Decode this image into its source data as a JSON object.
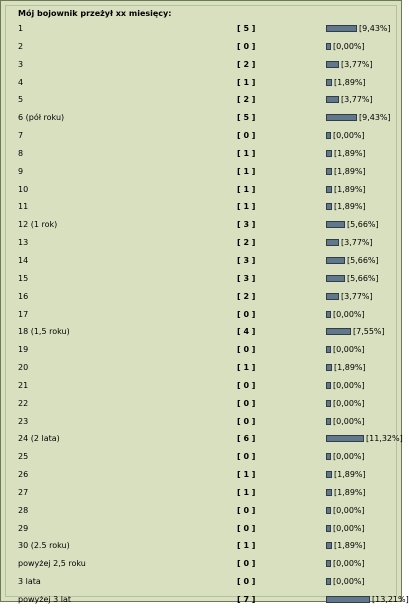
{
  "poll": {
    "title": "Mój bojownik przeżył xx miesięcy:",
    "bar_color": "#61788a",
    "rows": [
      {
        "label": "1",
        "count": "[ 5 ]",
        "percent": "[9,43%]",
        "value": 9.43
      },
      {
        "label": "2",
        "count": "[ 0 ]",
        "percent": "[0,00%]",
        "value": 0
      },
      {
        "label": "3",
        "count": "[ 2 ]",
        "percent": "[3,77%]",
        "value": 3.77
      },
      {
        "label": "4",
        "count": "[ 1 ]",
        "percent": "[1,89%]",
        "value": 1.89
      },
      {
        "label": "5",
        "count": "[ 2 ]",
        "percent": "[3,77%]",
        "value": 3.77
      },
      {
        "label": "6 (pół roku)",
        "count": "[ 5 ]",
        "percent": "[9,43%]",
        "value": 9.43
      },
      {
        "label": "7",
        "count": "[ 0 ]",
        "percent": "[0,00%]",
        "value": 0
      },
      {
        "label": "8",
        "count": "[ 1 ]",
        "percent": "[1,89%]",
        "value": 1.89
      },
      {
        "label": "9",
        "count": "[ 1 ]",
        "percent": "[1,89%]",
        "value": 1.89
      },
      {
        "label": "10",
        "count": "[ 1 ]",
        "percent": "[1,89%]",
        "value": 1.89
      },
      {
        "label": "11",
        "count": "[ 1 ]",
        "percent": "[1,89%]",
        "value": 1.89
      },
      {
        "label": "12 (1 rok)",
        "count": "[ 3 ]",
        "percent": "[5,66%]",
        "value": 5.66
      },
      {
        "label": "13",
        "count": "[ 2 ]",
        "percent": "[3,77%]",
        "value": 3.77
      },
      {
        "label": "14",
        "count": "[ 3 ]",
        "percent": "[5,66%]",
        "value": 5.66
      },
      {
        "label": "15",
        "count": "[ 3 ]",
        "percent": "[5,66%]",
        "value": 5.66
      },
      {
        "label": "16",
        "count": "[ 2 ]",
        "percent": "[3,77%]",
        "value": 3.77
      },
      {
        "label": "17",
        "count": "[ 0 ]",
        "percent": "[0,00%]",
        "value": 0
      },
      {
        "label": "18 (1,5 roku)",
        "count": "[ 4 ]",
        "percent": "[7,55%]",
        "value": 7.55
      },
      {
        "label": "19",
        "count": "[ 0 ]",
        "percent": "[0,00%]",
        "value": 0
      },
      {
        "label": "20",
        "count": "[ 1 ]",
        "percent": "[1,89%]",
        "value": 1.89
      },
      {
        "label": "21",
        "count": "[ 0 ]",
        "percent": "[0,00%]",
        "value": 0
      },
      {
        "label": "22",
        "count": "[ 0 ]",
        "percent": "[0,00%]",
        "value": 0
      },
      {
        "label": "23",
        "count": "[ 0 ]",
        "percent": "[0,00%]",
        "value": 0
      },
      {
        "label": "24 (2 lata)",
        "count": "[ 6 ]",
        "percent": "[11,32%]",
        "value": 11.32
      },
      {
        "label": "25",
        "count": "[ 0 ]",
        "percent": "[0,00%]",
        "value": 0
      },
      {
        "label": "26",
        "count": "[ 1 ]",
        "percent": "[1,89%]",
        "value": 1.89
      },
      {
        "label": "27",
        "count": "[ 1 ]",
        "percent": "[1,89%]",
        "value": 1.89
      },
      {
        "label": "28",
        "count": "[ 0 ]",
        "percent": "[0,00%]",
        "value": 0
      },
      {
        "label": "29",
        "count": "[ 0 ]",
        "percent": "[0,00%]",
        "value": 0
      },
      {
        "label": "30 (2.5 roku)",
        "count": "[ 1 ]",
        "percent": "[1,89%]",
        "value": 1.89
      },
      {
        "label": "powyżej 2,5 roku",
        "count": "[ 0 ]",
        "percent": "[0,00%]",
        "value": 0
      },
      {
        "label": "3 lata",
        "count": "[ 0 ]",
        "percent": "[0,00%]",
        "value": 0
      },
      {
        "label": "powyżej 3 lat",
        "count": "[ 7 ]",
        "percent": "[13,21%]",
        "value": 13.21
      }
    ]
  }
}
